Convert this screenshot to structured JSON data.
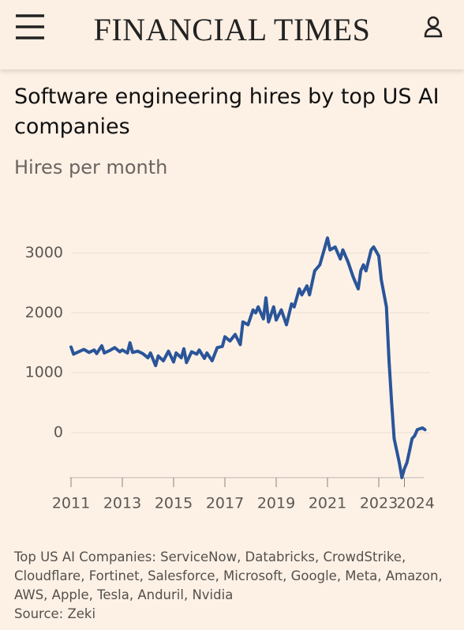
{
  "header": {
    "brand": "FINANCIAL TIMES"
  },
  "chart_data": {
    "type": "line",
    "title": "Software engineering hires by top US AI companies",
    "subtitle": "Hires per month",
    "color": "#2a5599",
    "x": [
      2011.0,
      2011.1,
      2011.3,
      2011.5,
      2011.7,
      2011.9,
      2012.0,
      2012.2,
      2012.3,
      2012.5,
      2012.7,
      2012.9,
      2013.0,
      2013.2,
      2013.3,
      2013.4,
      2013.6,
      2013.8,
      2014.0,
      2014.1,
      2014.3,
      2014.4,
      2014.6,
      2014.8,
      2015.0,
      2015.1,
      2015.3,
      2015.4,
      2015.5,
      2015.7,
      2015.9,
      2016.0,
      2016.2,
      2016.3,
      2016.5,
      2016.7,
      2016.9,
      2017.0,
      2017.2,
      2017.4,
      2017.6,
      2017.7,
      2017.9,
      2018.1,
      2018.2,
      2018.3,
      2018.5,
      2018.6,
      2018.7,
      2018.9,
      2019.0,
      2019.2,
      2019.4,
      2019.6,
      2019.7,
      2019.9,
      2020.0,
      2020.2,
      2020.3,
      2020.5,
      2020.7,
      2020.9,
      2021.0,
      2021.1,
      2021.3,
      2021.5,
      2021.6,
      2021.8,
      2022.0,
      2022.1,
      2022.2,
      2022.3,
      2022.4,
      2022.5,
      2022.7,
      2022.8,
      2023.0,
      2023.1,
      2023.3,
      2023.4,
      2023.5,
      2023.6,
      2023.8,
      2023.9,
      2024.0,
      2024.1,
      2024.2,
      2024.3,
      2024.4,
      2024.5,
      2024.7,
      2024.8
    ],
    "values": [
      1430,
      1310,
      1350,
      1390,
      1340,
      1380,
      1320,
      1450,
      1330,
      1370,
      1420,
      1350,
      1380,
      1330,
      1500,
      1340,
      1360,
      1320,
      1250,
      1330,
      1120,
      1280,
      1200,
      1360,
      1180,
      1330,
      1250,
      1400,
      1170,
      1350,
      1310,
      1380,
      1240,
      1330,
      1200,
      1420,
      1440,
      1600,
      1530,
      1640,
      1470,
      1850,
      1800,
      2050,
      2000,
      2100,
      1900,
      2250,
      1850,
      2100,
      1880,
      2050,
      1800,
      2150,
      2100,
      2400,
      2300,
      2450,
      2300,
      2700,
      2800,
      3100,
      3250,
      3050,
      3100,
      2900,
      3050,
      2850,
      2600,
      2500,
      2400,
      2700,
      2800,
      2700,
      3050,
      3100,
      2950,
      2550,
      2100,
      1200,
      500,
      -100,
      -500,
      -750,
      -600,
      -500,
      -300,
      -100,
      -50,
      50,
      80,
      50
    ],
    "xlim": [
      2011,
      2025
    ],
    "xticks": [
      2011,
      2013,
      2015,
      2017,
      2019,
      2021,
      2023,
      2024
    ],
    "ylim": [
      -750,
      3400
    ],
    "yticks": [
      0,
      1000,
      2000,
      3000
    ],
    "grid": true,
    "note": "Top US AI Companies: ServiceNow, Databricks, CrowdStrike, Cloudflare, Fortinet, Salesforce, Microsoft, Google, Meta, Amazon, AWS, Apple, Tesla, Anduril, Nvidia",
    "source": "Source: Zeki"
  }
}
